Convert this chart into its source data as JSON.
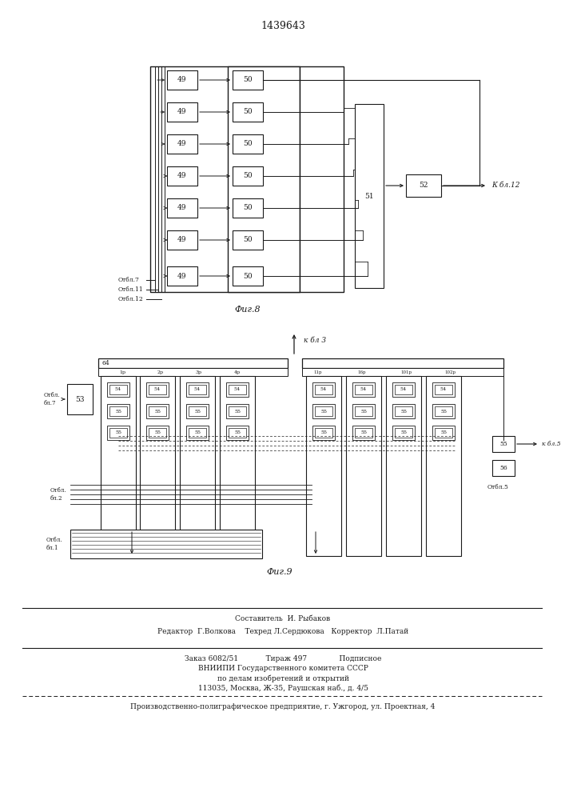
{
  "patent_number": "1439643",
  "fig8_label": "Фиг.8",
  "fig9_label": "Фиг.9",
  "background_color": "#ffffff",
  "line_color": "#1a1a1a",
  "footer_lines": [
    "Составитель  И. Рыбаков",
    "Редактор  Г.Волкова    Техред Л.Сердюкова   Корректор  Л.Патай",
    "Заказ 6082/51            Тираж 497              Подписное",
    "ВНИИПИ Государственного комитета СССР",
    "по делам изобретений и открытий",
    "113035, Москва, Ж-35, Раушская наб., д. 4/5",
    "Производственно-полиграфическое предприятие, г. Ужгород, ул. Проектная, 4"
  ],
  "fig8_ot7": "Отбл.7",
  "fig8_ot11": "Отбл.11",
  "fig8_ot12": "Отбл.12",
  "fig8_kbl12": "К бл.12",
  "fig9_kbl3": "к бл 3",
  "fig9_otbl1": "Отбл.1",
  "fig9_otbl2": "Отбл.2",
  "fig9_otbl7": "Отбл.\nбл.\n7",
  "fig9_kbl5": "к бл.5",
  "fig9_otbl5": "Отбл.5"
}
